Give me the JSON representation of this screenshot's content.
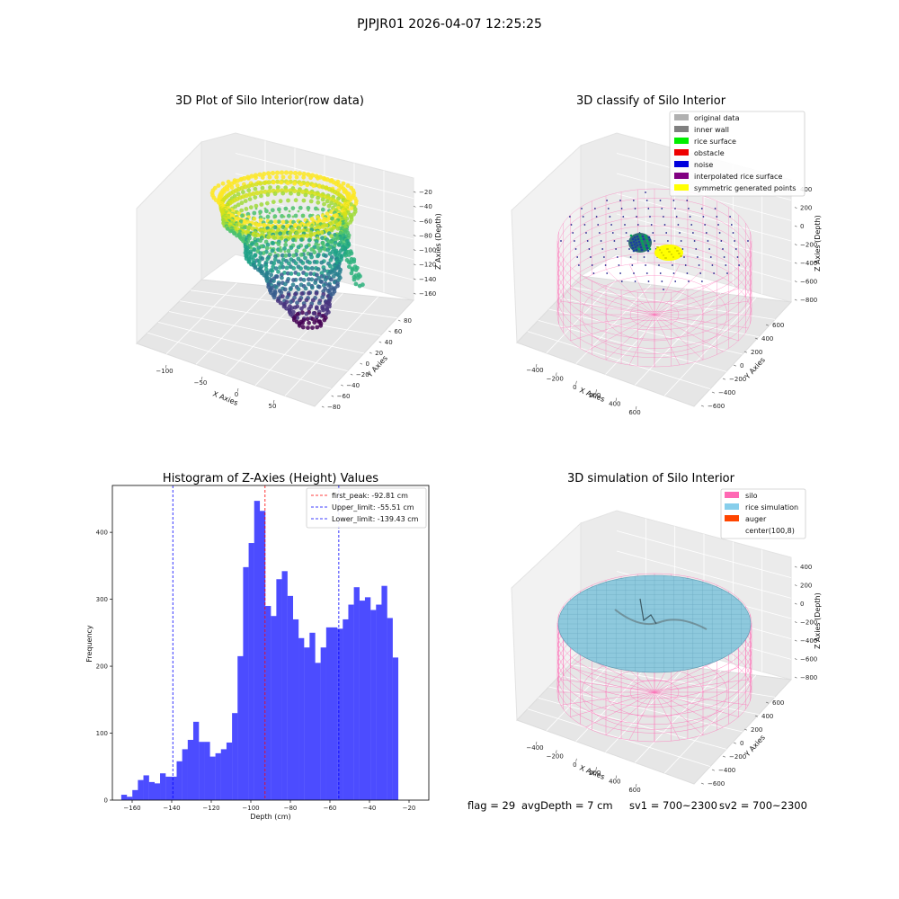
{
  "suptitle": "PJPJR01 2026-04-07 12:25:25",
  "panels": {
    "raw": {
      "title": "3D Plot of Silo Interior(row data)",
      "xlabel": "X Axies",
      "ylabel": "Y Axies",
      "zlabel": "Z Axies (Depth)",
      "x_ticks": [
        "−100",
        "−50",
        "0",
        "50"
      ],
      "y_ticks": [
        "80",
        "60",
        "40",
        "20",
        "0",
        "−20",
        "−40",
        "−60",
        "−80"
      ],
      "z_ticks": [
        "−20",
        "−40",
        "−60",
        "−80",
        "−100",
        "−120",
        "−140",
        "−160"
      ]
    },
    "classify": {
      "title": "3D classify of Silo Interior",
      "xlabel": "X Axies",
      "ylabel": "Y Axies",
      "zlabel": "Z Axies (Depth)",
      "x_ticks": [
        "−400",
        "−200",
        "0",
        "200",
        "400",
        "600"
      ],
      "y_ticks": [
        "600",
        "400",
        "200",
        "0",
        "−200",
        "−400",
        "−600"
      ],
      "z_ticks": [
        "400",
        "200",
        "0",
        "−200",
        "−400",
        "−600",
        "−800"
      ],
      "legend": [
        {
          "label": "original data",
          "color": "#b0b0b0"
        },
        {
          "label": "inner wall",
          "color": "#808080"
        },
        {
          "label": "rice surface",
          "color": "#00ee00"
        },
        {
          "label": "obstacle",
          "color": "#ee0000"
        },
        {
          "label": "noise",
          "color": "#0000dd"
        },
        {
          "label": "interpolated rice surface",
          "color": "#800080"
        },
        {
          "label": "symmetric generated points",
          "color": "#ffff00"
        }
      ]
    },
    "simulation": {
      "title": "3D simulation of Silo Interior",
      "xlabel": "X Axies",
      "ylabel": "Y Axies",
      "zlabel": "Z Axies (Depth)",
      "x_ticks": [
        "−400",
        "−200",
        "0",
        "200",
        "400",
        "600"
      ],
      "y_ticks": [
        "600",
        "400",
        "200",
        "0",
        "−200",
        "−400",
        "−600"
      ],
      "z_ticks": [
        "400",
        "200",
        "0",
        "−200",
        "−400",
        "−600",
        "−800"
      ],
      "legend": [
        {
          "label": "silo",
          "color": "#ff69b4"
        },
        {
          "label": "rice simulation",
          "color": "#87ceeb"
        },
        {
          "label": "auger",
          "color": "#ff4500"
        },
        {
          "label": "center(100,8)",
          "color": "#ffffff"
        }
      ]
    }
  },
  "chart_data": {
    "type": "bar",
    "title": "Histogram of Z-Axies (Height) Values",
    "xlabel": "Depth (cm)",
    "ylabel": "Frequency",
    "xlim": [
      -170,
      -10
    ],
    "ylim": [
      0,
      470
    ],
    "x_ticks": [
      -160,
      -140,
      -120,
      -100,
      -80,
      -60,
      -40,
      -20
    ],
    "y_ticks": [
      0,
      100,
      200,
      300,
      400
    ],
    "bar_color": "#4c4cff",
    "bin_start": -165.5,
    "bin_width": 2.8,
    "values": [
      8,
      5,
      15,
      30,
      37,
      27,
      25,
      40,
      35,
      35,
      58,
      76,
      90,
      117,
      87,
      87,
      65,
      70,
      76,
      86,
      130,
      215,
      348,
      384,
      447,
      432,
      290,
      275,
      330,
      342,
      305,
      270,
      242,
      228,
      250,
      205,
      228,
      258,
      258,
      256,
      270,
      292,
      318,
      298,
      303,
      284,
      292,
      320,
      272,
      213
    ],
    "lines": [
      {
        "label": "first_peak: -92.81 cm",
        "value": -92.81,
        "color": "#ff0000"
      },
      {
        "label": "Upper_limit: -55.51 cm",
        "value": -55.51,
        "color": "#0000ff"
      },
      {
        "label": "Lower_limit: -139.43 cm",
        "value": -139.43,
        "color": "#0000ff"
      }
    ],
    "legend_position": "upper right"
  },
  "footer": {
    "flag": "flag = 29",
    "avg_depth": "avgDepth = 7 cm",
    "sv1": "sv1 = 700~2300",
    "sv2": "sv2 = 700~2300"
  }
}
